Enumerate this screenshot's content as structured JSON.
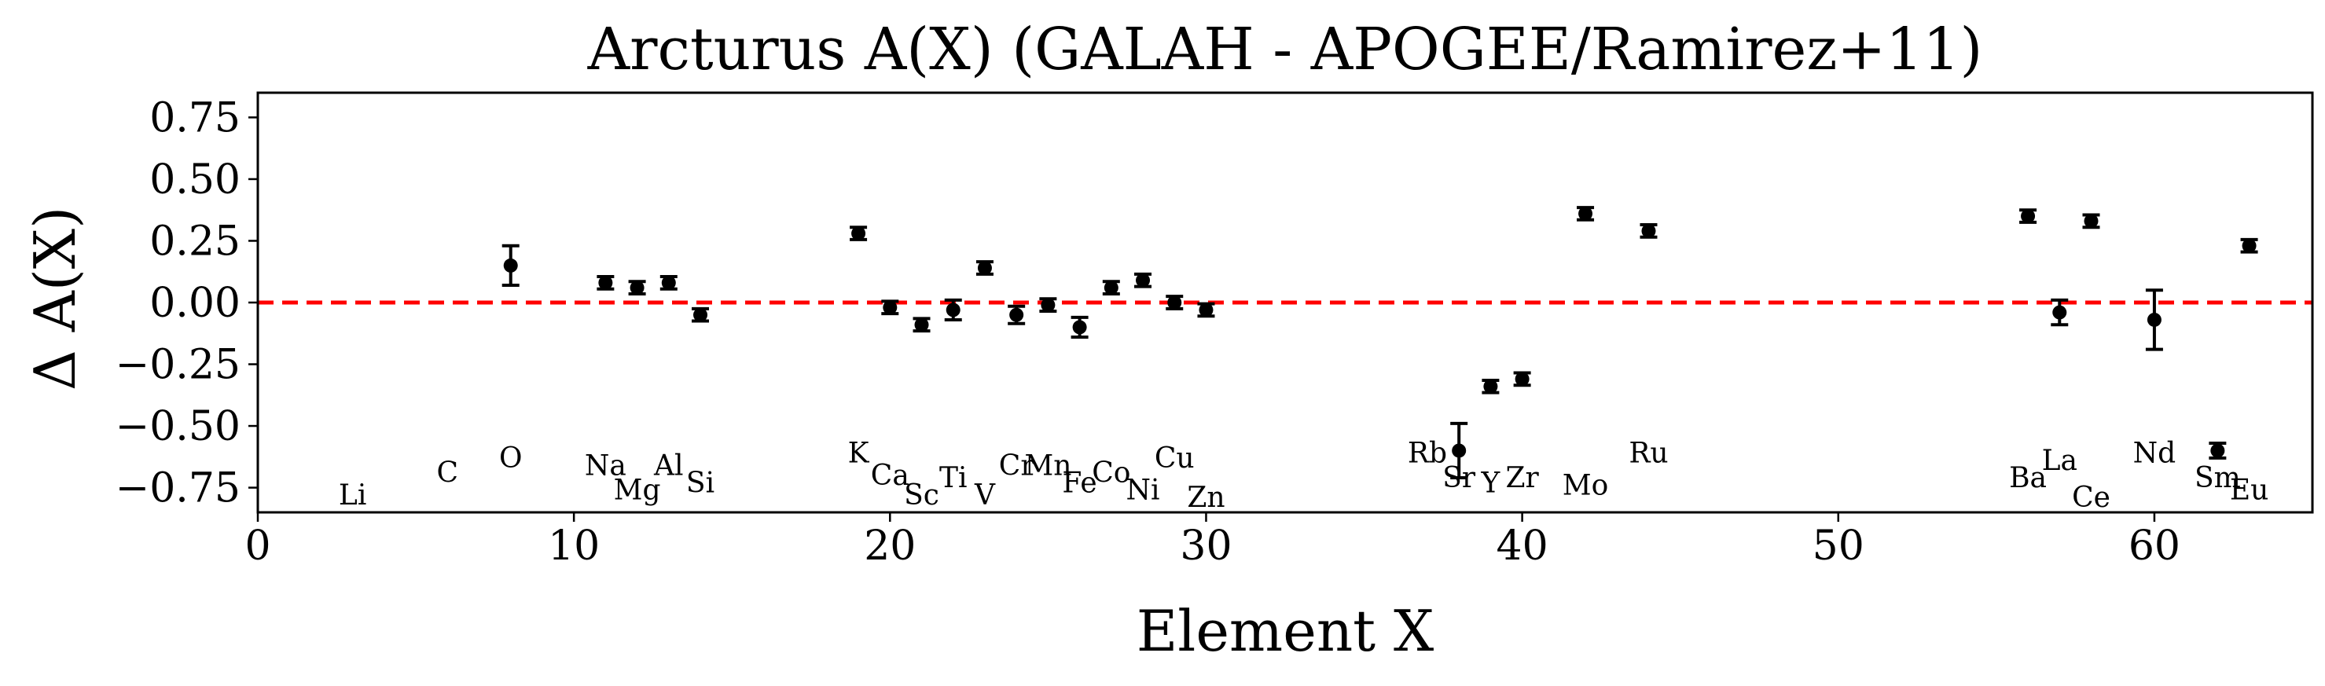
{
  "chart_data": {
    "type": "scatter",
    "title": "Arcturus A(X) (GALAH - APOGEE/Ramirez+11)",
    "xlabel": "Element X",
    "ylabel": "Δ A(X)",
    "xlim": [
      0,
      65
    ],
    "ylim": [
      -0.85,
      0.85
    ],
    "xticks": [
      "0",
      "10",
      "20",
      "30",
      "40",
      "50",
      "60"
    ],
    "yticks": [
      "−0.75",
      "−0.50",
      "−0.25",
      "0.00",
      "0.25",
      "0.50",
      "0.75"
    ],
    "reference_line": {
      "y": 0.0,
      "color": "#ff0000",
      "style": "dashed"
    },
    "grid": false,
    "points": [
      {
        "x": 8,
        "y": 0.15,
        "err": 0.08
      },
      {
        "x": 11,
        "y": 0.08,
        "err": 0.025
      },
      {
        "x": 12,
        "y": 0.06,
        "err": 0.025
      },
      {
        "x": 13,
        "y": 0.08,
        "err": 0.025
      },
      {
        "x": 14,
        "y": -0.05,
        "err": 0.025
      },
      {
        "x": 19,
        "y": 0.28,
        "err": 0.025
      },
      {
        "x": 20,
        "y": -0.02,
        "err": 0.025
      },
      {
        "x": 21,
        "y": -0.09,
        "err": 0.025
      },
      {
        "x": 22,
        "y": -0.03,
        "err": 0.04
      },
      {
        "x": 23,
        "y": 0.14,
        "err": 0.025
      },
      {
        "x": 24,
        "y": -0.05,
        "err": 0.035
      },
      {
        "x": 25,
        "y": -0.01,
        "err": 0.025
      },
      {
        "x": 26,
        "y": -0.1,
        "err": 0.04
      },
      {
        "x": 27,
        "y": 0.06,
        "err": 0.025
      },
      {
        "x": 28,
        "y": 0.09,
        "err": 0.025
      },
      {
        "x": 29,
        "y": 0.0,
        "err": 0.025
      },
      {
        "x": 30,
        "y": -0.03,
        "err": 0.025
      },
      {
        "x": 38,
        "y": -0.6,
        "err": 0.11
      },
      {
        "x": 39,
        "y": -0.34,
        "err": 0.025
      },
      {
        "x": 40,
        "y": -0.31,
        "err": 0.025
      },
      {
        "x": 42,
        "y": 0.36,
        "err": 0.025
      },
      {
        "x": 44,
        "y": 0.29,
        "err": 0.025
      },
      {
        "x": 56,
        "y": 0.35,
        "err": 0.025
      },
      {
        "x": 57,
        "y": -0.04,
        "err": 0.05
      },
      {
        "x": 58,
        "y": 0.33,
        "err": 0.025
      },
      {
        "x": 60,
        "y": -0.07,
        "err": 0.12
      },
      {
        "x": 62,
        "y": -0.6,
        "err": 0.03
      },
      {
        "x": 63,
        "y": 0.23,
        "err": 0.025
      }
    ],
    "element_labels": [
      {
        "text": "Li",
        "x": 3,
        "y": -0.78
      },
      {
        "text": "C",
        "x": 6,
        "y": -0.69
      },
      {
        "text": "O",
        "x": 8,
        "y": -0.63
      },
      {
        "text": "Na",
        "x": 11,
        "y": -0.66
      },
      {
        "text": "Mg",
        "x": 12,
        "y": -0.76
      },
      {
        "text": "Al",
        "x": 13,
        "y": -0.66
      },
      {
        "text": "Si",
        "x": 14,
        "y": -0.73
      },
      {
        "text": "K",
        "x": 19,
        "y": -0.61
      },
      {
        "text": "Ca",
        "x": 20,
        "y": -0.7
      },
      {
        "text": "Sc",
        "x": 21,
        "y": -0.78
      },
      {
        "text": "Ti",
        "x": 22,
        "y": -0.71
      },
      {
        "text": "V",
        "x": 23,
        "y": -0.78
      },
      {
        "text": "Cr",
        "x": 24,
        "y": -0.66
      },
      {
        "text": "Mn",
        "x": 25,
        "y": -0.66
      },
      {
        "text": "Fe",
        "x": 26,
        "y": -0.73
      },
      {
        "text": "Co",
        "x": 27,
        "y": -0.69
      },
      {
        "text": "Ni",
        "x": 28,
        "y": -0.76
      },
      {
        "text": "Cu",
        "x": 29,
        "y": -0.63
      },
      {
        "text": "Zn",
        "x": 30,
        "y": -0.79
      },
      {
        "text": "Rb",
        "x": 37,
        "y": -0.61
      },
      {
        "text": "Sr",
        "x": 38,
        "y": -0.71
      },
      {
        "text": "Y",
        "x": 39,
        "y": -0.73
      },
      {
        "text": "Zr",
        "x": 40,
        "y": -0.71
      },
      {
        "text": "Mo",
        "x": 42,
        "y": -0.74
      },
      {
        "text": "Ru",
        "x": 44,
        "y": -0.61
      },
      {
        "text": "Ba",
        "x": 56,
        "y": -0.71
      },
      {
        "text": "La",
        "x": 57,
        "y": -0.64
      },
      {
        "text": "Ce",
        "x": 58,
        "y": -0.79
      },
      {
        "text": "Nd",
        "x": 60,
        "y": -0.61
      },
      {
        "text": "Sm",
        "x": 62,
        "y": -0.71
      },
      {
        "text": "Eu",
        "x": 63,
        "y": -0.76
      }
    ]
  }
}
